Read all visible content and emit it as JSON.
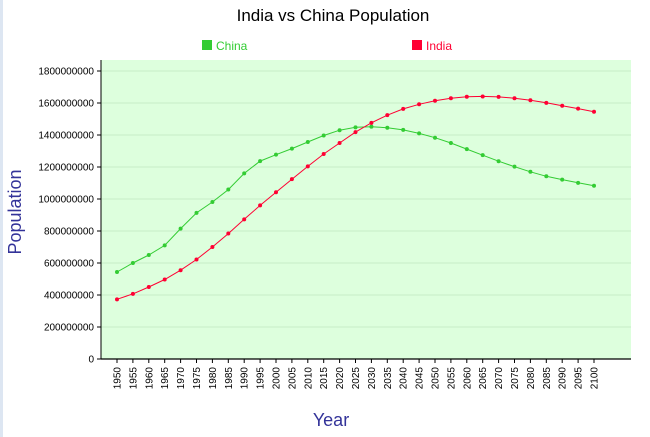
{
  "chart_data": {
    "type": "line",
    "title": "India vs China Population",
    "xlabel": "Year",
    "ylabel": "Population",
    "categories": [
      "1950",
      "1955",
      "1960",
      "1965",
      "1970",
      "1975",
      "1980",
      "1985",
      "1990",
      "1995",
      "2000",
      "2005",
      "2010",
      "2015",
      "2020",
      "2025",
      "2030",
      "2035",
      "2040",
      "2045",
      "2050",
      "2055",
      "2060",
      "2065",
      "2070",
      "2075",
      "2080",
      "2085",
      "2090",
      "2095",
      "2100"
    ],
    "series": [
      {
        "name": "China",
        "color": "#33cc33",
        "values": [
          544000000,
          600000000,
          650000000,
          710000000,
          815000000,
          913000000,
          981000000,
          1059000000,
          1160000000,
          1237000000,
          1277000000,
          1315000000,
          1356000000,
          1397000000,
          1430000000,
          1448000000,
          1452000000,
          1445000000,
          1432000000,
          1410000000,
          1383000000,
          1350000000,
          1312000000,
          1274000000,
          1236000000,
          1202000000,
          1170000000,
          1142000000,
          1121000000,
          1101000000,
          1083000000
        ]
      },
      {
        "name": "India",
        "color": "#ff0033",
        "values": [
          373000000,
          407000000,
          450000000,
          497000000,
          555000000,
          622000000,
          700000000,
          784000000,
          873000000,
          960000000,
          1042000000,
          1124000000,
          1204000000,
          1281000000,
          1350000000,
          1418000000,
          1476000000,
          1524000000,
          1563000000,
          1592000000,
          1614000000,
          1630000000,
          1639000000,
          1641000000,
          1638000000,
          1630000000,
          1617000000,
          1601000000,
          1583000000,
          1565000000,
          1545000000
        ]
      }
    ],
    "yticks": [
      "0",
      "200000000",
      "400000000",
      "600000000",
      "800000000",
      "1000000000",
      "1200000000",
      "1400000000",
      "1600000000",
      "1800000000"
    ],
    "ylim": [
      0,
      1800000000
    ],
    "grid": true,
    "legend_position": "top",
    "plot_background": "#ddffdd",
    "axis_label_color": "#333399"
  }
}
